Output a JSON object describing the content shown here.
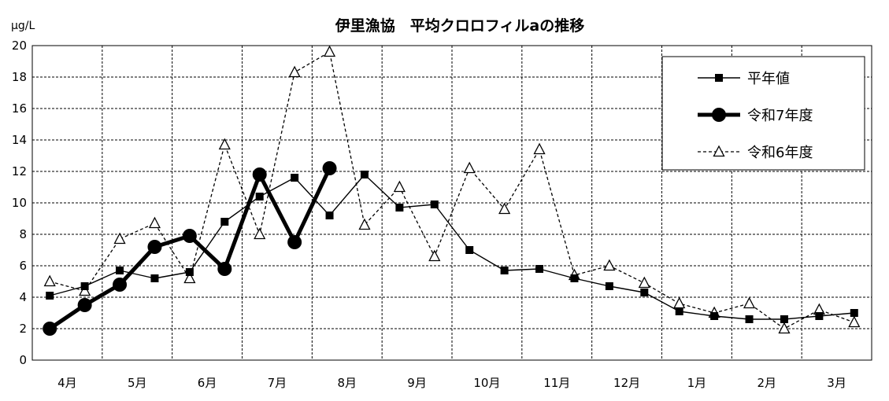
{
  "chart_data": {
    "type": "line",
    "title": "伊里漁協　平均クロロフィルaの推移",
    "ylabel": "μg/L",
    "xlabel": "",
    "ylim": [
      0,
      20
    ],
    "yticks": [
      0,
      2,
      4,
      6,
      8,
      10,
      12,
      14,
      16,
      18,
      20
    ],
    "grid": true,
    "legend_position": "top-right",
    "month_labels": [
      "4月",
      "5月",
      "6月",
      "7月",
      "8月",
      "9月",
      "10月",
      "11月",
      "12月",
      "1月",
      "2月",
      "3月"
    ],
    "series": [
      {
        "name": "平年値",
        "color": "#000000",
        "style": "solid-thin",
        "marker": "square",
        "values": [
          4.1,
          4.7,
          5.7,
          5.2,
          5.6,
          8.8,
          10.4,
          11.6,
          9.2,
          11.8,
          9.7,
          9.9,
          7.0,
          5.7,
          5.8,
          5.2,
          4.7,
          4.3,
          3.1,
          2.8,
          2.6,
          2.6,
          2.8,
          3.0
        ]
      },
      {
        "name": "令和7年度",
        "color": "#000000",
        "style": "solid-thick",
        "marker": "circle",
        "values": [
          2.0,
          3.5,
          4.8,
          7.2,
          7.9,
          5.8,
          11.8,
          7.5,
          12.2,
          null,
          null,
          null,
          null,
          null,
          null,
          null,
          null,
          null,
          null,
          null,
          null,
          null,
          null,
          null
        ]
      },
      {
        "name": "令和6年度",
        "color": "#000000",
        "style": "dashed",
        "marker": "triangle",
        "values": [
          5.0,
          4.4,
          7.7,
          8.7,
          5.2,
          13.7,
          8.0,
          18.3,
          19.6,
          8.6,
          11.0,
          6.6,
          12.2,
          9.6,
          13.4,
          5.4,
          6.0,
          4.9,
          3.6,
          3.0,
          3.6,
          2.0,
          3.2,
          2.4
        ]
      }
    ]
  }
}
